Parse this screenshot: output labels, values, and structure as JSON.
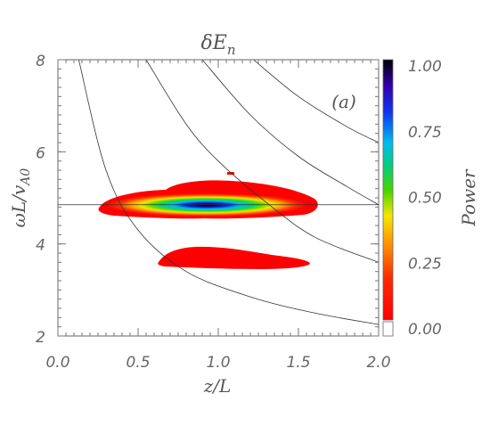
{
  "chart_data": {
    "type": "heatmap",
    "title": "δE_n",
    "panel_label": "(a)",
    "xlabel": "z/L",
    "ylabel": "ωL/v_A0",
    "xlim": [
      0.0,
      2.0
    ],
    "ylim": [
      2.0,
      8.0
    ],
    "x_ticks": [
      "0.0",
      "0.5",
      "1.0",
      "1.5",
      "2.0"
    ],
    "y_ticks": [
      "2",
      "4",
      "6",
      "8"
    ],
    "colorbar": {
      "label": "Power",
      "range": [
        0.0,
        1.0
      ],
      "ticks": [
        "0.00",
        "0.25",
        "0.50",
        "0.75",
        "1.00"
      ]
    },
    "reference_line": {
      "y": 4.85
    },
    "dispersion_curves": [
      {
        "points": [
          [
            0.13,
            8.0
          ],
          [
            0.3,
            5.6
          ],
          [
            0.5,
            4.3
          ],
          [
            0.8,
            3.4
          ],
          [
            1.2,
            2.85
          ],
          [
            1.6,
            2.5
          ],
          [
            2.0,
            2.25
          ]
        ]
      },
      {
        "points": [
          [
            0.55,
            8.0
          ],
          [
            0.8,
            6.6
          ],
          [
            1.0,
            5.8
          ],
          [
            1.3,
            4.9
          ],
          [
            1.6,
            4.15
          ],
          [
            2.0,
            3.6
          ]
        ]
      },
      {
        "points": [
          [
            0.9,
            8.0
          ],
          [
            1.2,
            6.8
          ],
          [
            1.5,
            5.9
          ],
          [
            1.8,
            5.25
          ],
          [
            2.0,
            4.85
          ]
        ]
      },
      {
        "points": [
          [
            1.22,
            8.0
          ],
          [
            1.5,
            7.2
          ],
          [
            1.8,
            6.55
          ],
          [
            2.0,
            6.2
          ]
        ]
      }
    ],
    "power_regions": [
      {
        "mode": "upper",
        "x_center": 0.97,
        "y_center": 4.83,
        "x_extent": [
          0.28,
          1.65
        ],
        "y_extent": [
          4.45,
          5.35
        ],
        "peak_power": 1.0
      },
      {
        "mode": "lower",
        "x_center": 1.05,
        "y_center": 3.65,
        "x_extent": [
          0.55,
          1.62
        ],
        "y_extent": [
          3.5,
          3.95
        ],
        "peak_power": 0.05
      }
    ]
  }
}
